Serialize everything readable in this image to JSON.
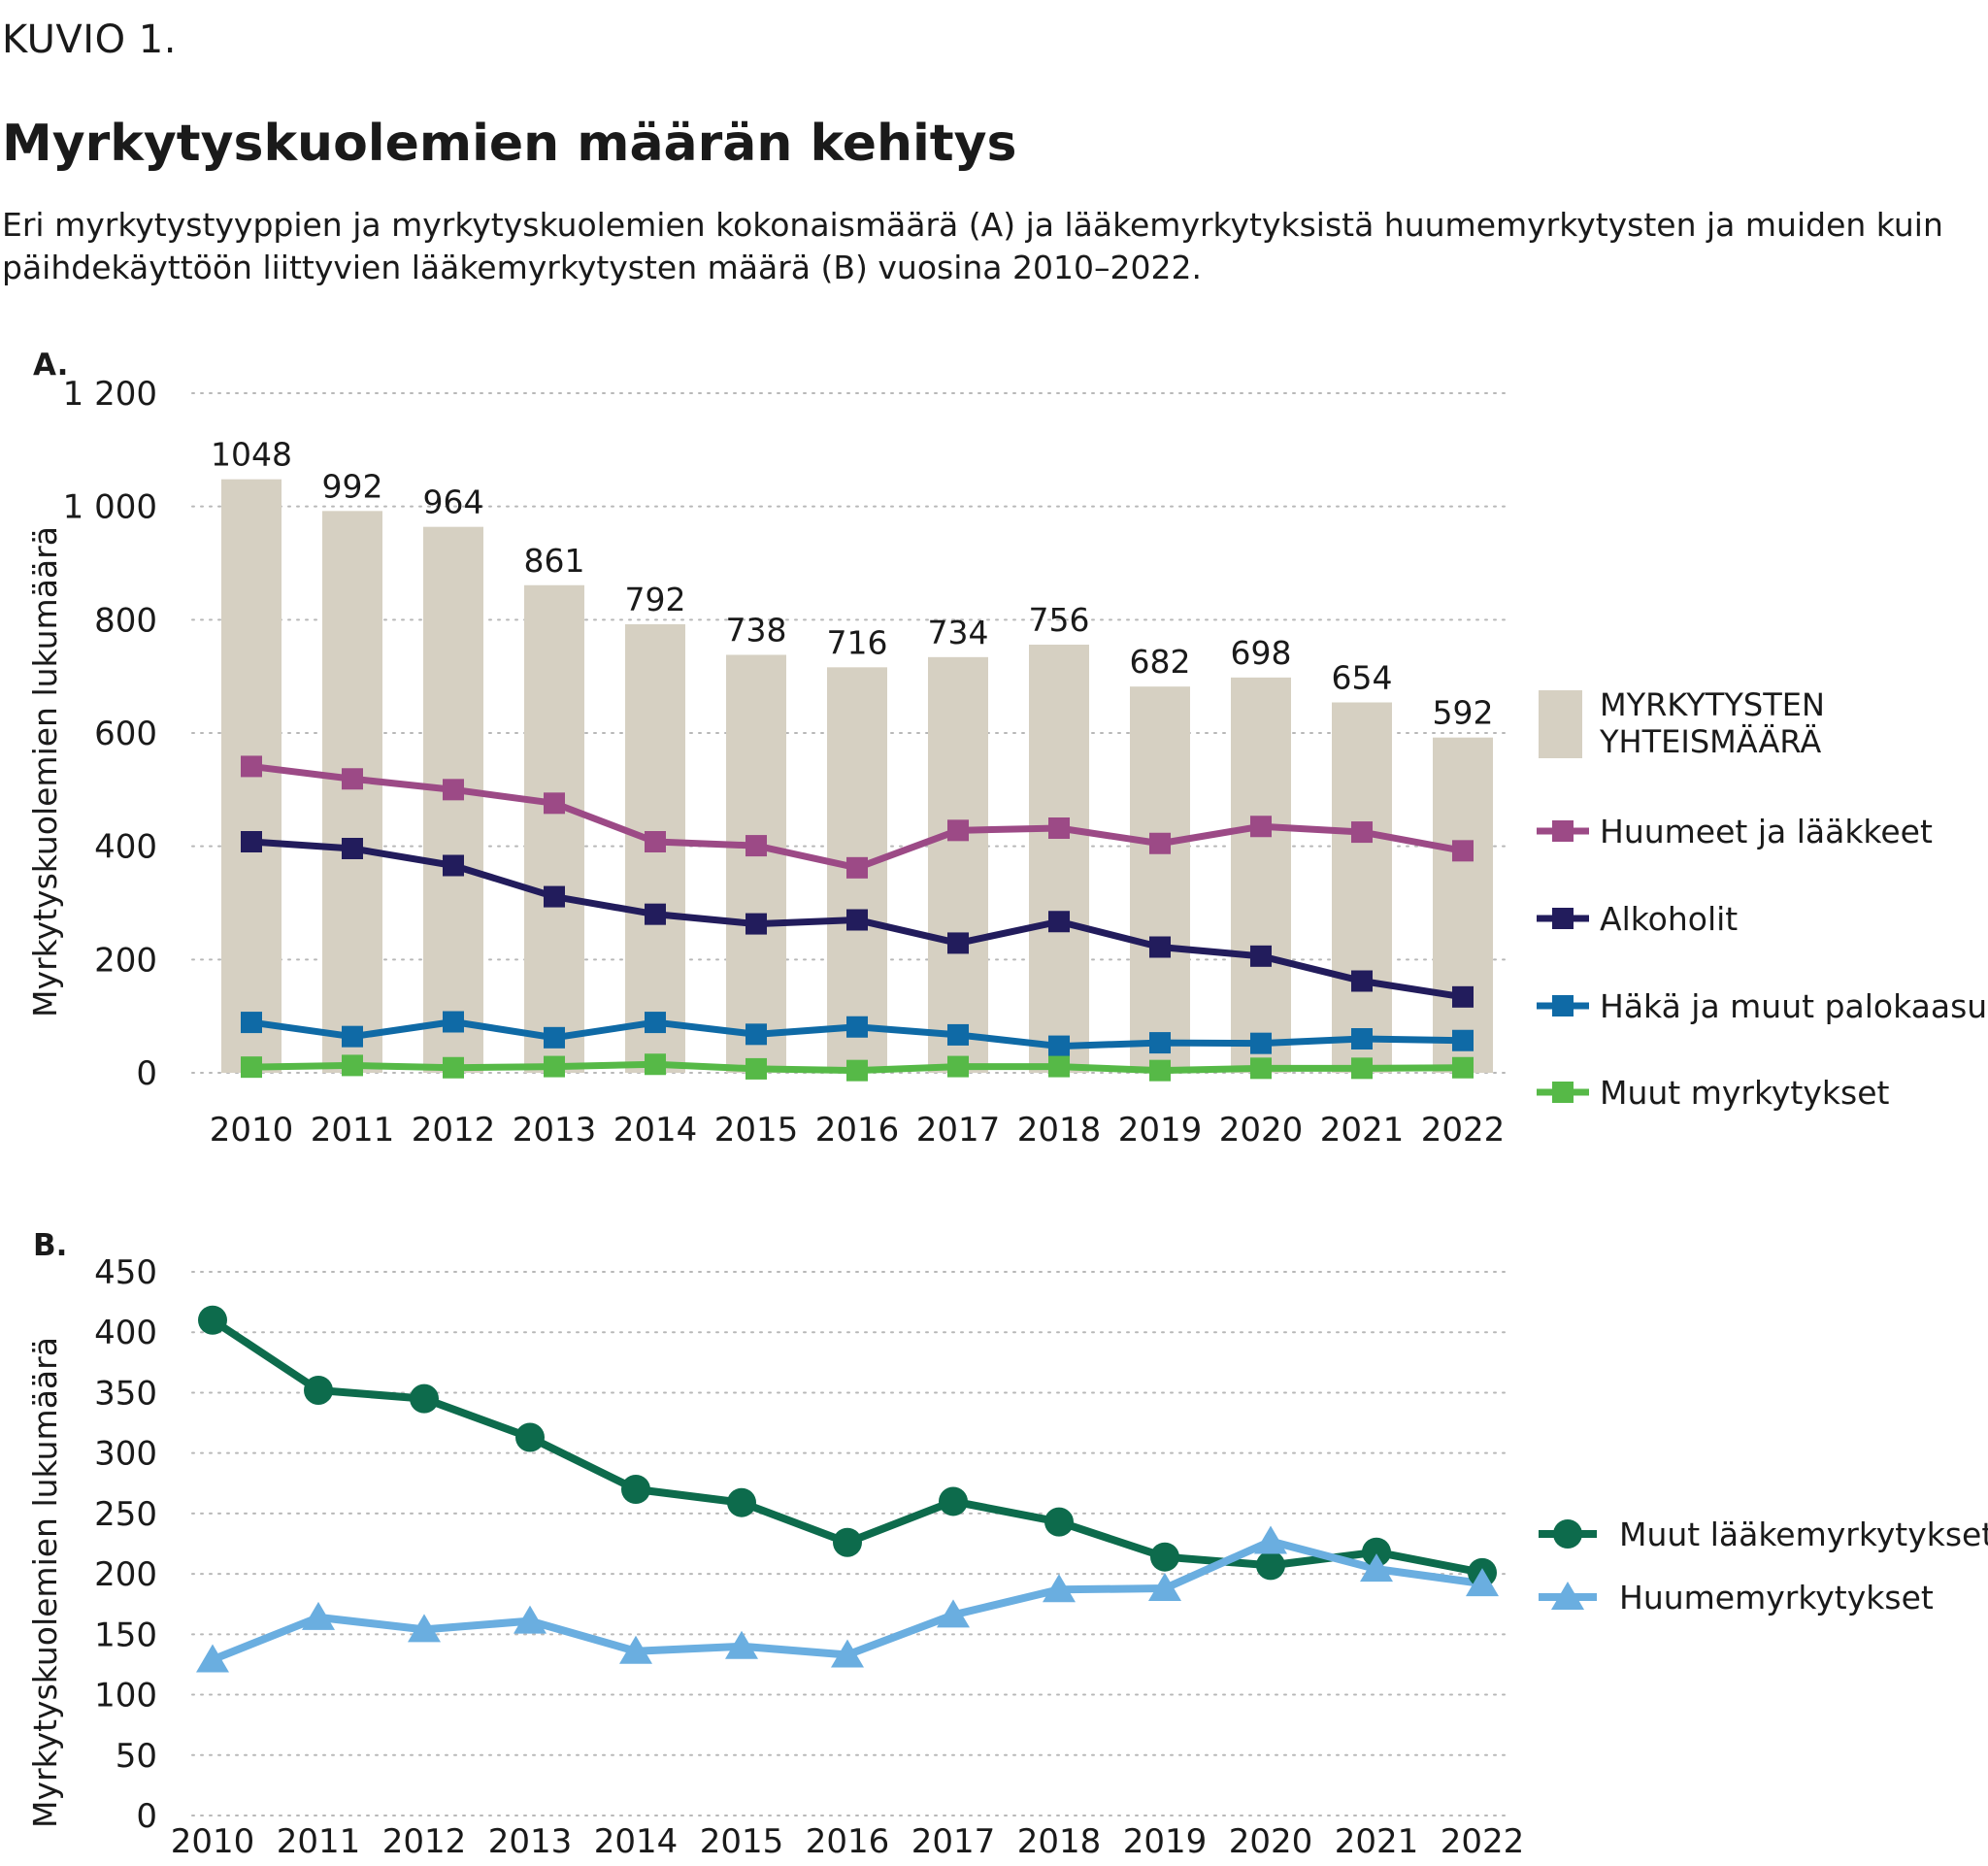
{
  "figure": {
    "label": "KUVIO 1.",
    "title": "Myrkytyskuolemien määrän kehitys",
    "subtitle": "Eri myrkytystyyppien ja myrkytyskuolemien kokonaismäärä (A) ja lääkemyrkytyksistä huumemyrkytysten ja muiden kuin päihdekäyttöön liittyvien lääkemyrkytysten määrä (B) vuosina 2010–2022."
  },
  "chart_data": [
    {
      "panel": "A.",
      "type": "bar",
      "categories": [
        "2010",
        "2011",
        "2012",
        "2013",
        "2014",
        "2015",
        "2016",
        "2017",
        "2018",
        "2019",
        "2020",
        "2021",
        "2022"
      ],
      "ylabel": "Myrkytyskuolemien lukumäärä",
      "ylim": [
        0,
        1200
      ],
      "yticks": [
        0,
        200,
        400,
        600,
        800,
        1000,
        1200
      ],
      "ytick_labels": [
        "0",
        "200",
        "400",
        "600",
        "800",
        "1 000",
        "1 200"
      ],
      "grid": true,
      "legend_position": "right",
      "bars": {
        "name": "MYRKYTYSTEN YHTEISMÄÄRÄ",
        "color": "#d6d0c2",
        "values": [
          1048,
          992,
          964,
          861,
          792,
          738,
          716,
          734,
          756,
          682,
          698,
          654,
          592
        ],
        "data_labels": [
          "1048",
          "992",
          "964",
          "861",
          "792",
          "738",
          "716",
          "734",
          "756",
          "682",
          "698",
          "654",
          "592"
        ]
      },
      "series": [
        {
          "name": "Huumeet ja lääkkeet",
          "type": "line",
          "marker": "square",
          "color": "#9c4a86",
          "values": [
            541,
            519,
            500,
            476,
            408,
            401,
            362,
            428,
            432,
            405,
            435,
            425,
            392
          ]
        },
        {
          "name": "Alkoholit",
          "type": "line",
          "marker": "square",
          "color": "#221c5c",
          "values": [
            408,
            396,
            366,
            311,
            280,
            263,
            270,
            229,
            267,
            222,
            206,
            162,
            134
          ]
        },
        {
          "name": "Häkä ja muut palokaasut",
          "type": "line",
          "marker": "square",
          "color": "#0f6aa6",
          "values": [
            89,
            64,
            90,
            62,
            89,
            68,
            81,
            67,
            47,
            53,
            52,
            60,
            57
          ]
        },
        {
          "name": "Muut myrkytykset",
          "type": "line",
          "marker": "square",
          "color": "#56b947",
          "values": [
            10,
            13,
            9,
            11,
            15,
            7,
            4,
            11,
            11,
            4,
            8,
            8,
            9
          ]
        }
      ]
    },
    {
      "panel": "B.",
      "type": "line",
      "categories": [
        "2010",
        "2011",
        "2012",
        "2013",
        "2014",
        "2015",
        "2016",
        "2017",
        "2018",
        "2019",
        "2020",
        "2021",
        "2022"
      ],
      "ylabel": "Myrkytyskuolemien lukumäärä",
      "ylim": [
        0,
        450
      ],
      "yticks": [
        0,
        50,
        100,
        150,
        200,
        250,
        300,
        350,
        400,
        450
      ],
      "ytick_labels": [
        "0",
        "50",
        "100",
        "150",
        "200",
        "250",
        "300",
        "350",
        "400",
        "450"
      ],
      "grid": true,
      "legend_position": "right",
      "series": [
        {
          "name": "Muut lääkemyrkytykset",
          "marker": "circle",
          "color": "#0d6b4c",
          "values": [
            410,
            352,
            345,
            313,
            270,
            259,
            226,
            260,
            243,
            214,
            207,
            218,
            201
          ]
        },
        {
          "name": "Huumemyrkytykset",
          "marker": "triangle",
          "color": "#6aaee0",
          "values": [
            129,
            164,
            154,
            161,
            136,
            140,
            133,
            166,
            187,
            188,
            227,
            204,
            192
          ]
        }
      ]
    }
  ]
}
